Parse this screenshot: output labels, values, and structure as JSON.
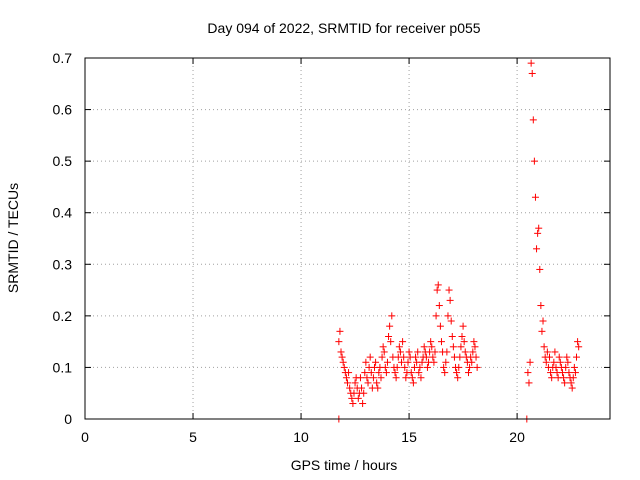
{
  "chart_data": {
    "type": "scatter",
    "title": "Day 094 of 2022, SRMTID for receiver p055",
    "xlabel": "GPS time / hours",
    "ylabel": "SRMTID / TECUs",
    "xlim": [
      0,
      24.3
    ],
    "ylim": [
      0,
      0.7
    ],
    "x_ticks": [
      0,
      5,
      10,
      15,
      20
    ],
    "x_tick_labels": [
      "0",
      "5",
      "10",
      "15",
      "20"
    ],
    "y_ticks": [
      0,
      0.1,
      0.2,
      0.3,
      0.4,
      0.5,
      0.6,
      0.7
    ],
    "y_tick_labels": [
      "0",
      "0.1",
      "0.2",
      "0.3",
      "0.4",
      "0.5",
      "0.6",
      "0.7"
    ],
    "grid": true,
    "marker": "+",
    "series_color": "#ff0000",
    "series": [
      {
        "name": "SRMTID",
        "x": [
          11.75,
          11.8,
          11.85,
          11.9,
          11.95,
          12.0,
          12.05,
          12.1,
          12.15,
          12.2,
          12.25,
          12.3,
          12.35,
          12.4,
          12.45,
          12.5,
          12.55,
          12.6,
          12.65,
          12.7,
          12.75,
          12.8,
          12.85,
          12.9,
          12.95,
          13.0,
          13.05,
          13.1,
          13.15,
          13.2,
          13.25,
          13.3,
          13.35,
          13.4,
          13.45,
          13.5,
          13.55,
          13.6,
          13.65,
          13.7,
          13.75,
          13.8,
          13.85,
          13.9,
          13.95,
          14.0,
          14.05,
          14.1,
          14.15,
          14.2,
          14.25,
          14.3,
          14.35,
          14.4,
          14.45,
          14.5,
          14.55,
          14.6,
          14.65,
          14.7,
          14.75,
          14.8,
          14.85,
          14.9,
          14.95,
          15.0,
          15.05,
          15.1,
          15.15,
          15.2,
          15.25,
          15.3,
          15.35,
          15.4,
          15.45,
          15.5,
          15.55,
          15.6,
          15.65,
          15.7,
          15.75,
          15.8,
          15.85,
          15.9,
          15.95,
          16.0,
          16.05,
          16.1,
          16.15,
          16.2,
          16.25,
          16.3,
          16.35,
          16.4,
          16.45,
          16.5,
          16.55,
          16.6,
          16.65,
          16.7,
          16.75,
          16.8,
          16.85,
          16.9,
          16.95,
          17.0,
          17.05,
          17.1,
          17.15,
          17.2,
          17.25,
          17.3,
          17.35,
          17.4,
          17.45,
          17.5,
          17.55,
          17.6,
          17.65,
          17.7,
          17.75,
          17.8,
          17.85,
          17.9,
          17.95,
          18.0,
          18.05,
          18.1,
          18.15,
          20.5,
          20.55,
          20.6,
          20.65,
          20.7,
          20.75,
          20.8,
          20.85,
          20.9,
          20.95,
          21.0,
          21.05,
          21.1,
          21.15,
          21.2,
          21.25,
          21.3,
          21.35,
          21.4,
          21.45,
          21.5,
          21.55,
          21.6,
          21.65,
          21.7,
          21.75,
          21.8,
          21.85,
          21.9,
          21.95,
          22.0,
          22.05,
          22.1,
          22.15,
          22.2,
          22.25,
          22.3,
          22.35,
          22.4,
          22.45,
          22.5,
          22.55,
          22.6,
          22.65,
          22.7,
          22.75,
          22.8,
          22.85,
          11.75,
          20.45
        ],
        "y": [
          0.15,
          0.17,
          0.13,
          0.12,
          0.11,
          0.1,
          0.09,
          0.08,
          0.07,
          0.09,
          0.06,
          0.05,
          0.04,
          0.03,
          0.05,
          0.07,
          0.08,
          0.06,
          0.04,
          0.05,
          0.08,
          0.06,
          0.03,
          0.05,
          0.09,
          0.11,
          0.08,
          0.07,
          0.1,
          0.12,
          0.09,
          0.06,
          0.08,
          0.1,
          0.11,
          0.07,
          0.06,
          0.09,
          0.1,
          0.08,
          0.12,
          0.14,
          0.13,
          0.1,
          0.09,
          0.11,
          0.16,
          0.18,
          0.15,
          0.2,
          0.12,
          0.1,
          0.09,
          0.08,
          0.1,
          0.12,
          0.14,
          0.13,
          0.11,
          0.15,
          0.12,
          0.1,
          0.08,
          0.09,
          0.11,
          0.13,
          0.12,
          0.09,
          0.08,
          0.07,
          0.1,
          0.12,
          0.11,
          0.13,
          0.09,
          0.1,
          0.08,
          0.11,
          0.12,
          0.14,
          0.13,
          0.12,
          0.1,
          0.11,
          0.13,
          0.15,
          0.14,
          0.12,
          0.11,
          0.13,
          0.2,
          0.25,
          0.26,
          0.22,
          0.18,
          0.15,
          0.13,
          0.1,
          0.09,
          0.11,
          0.13,
          0.2,
          0.25,
          0.23,
          0.19,
          0.16,
          0.14,
          0.12,
          0.1,
          0.09,
          0.08,
          0.1,
          0.12,
          0.14,
          0.16,
          0.18,
          0.15,
          0.13,
          0.12,
          0.11,
          0.09,
          0.1,
          0.12,
          0.11,
          0.13,
          0.15,
          0.14,
          0.12,
          0.1,
          0.09,
          0.07,
          0.11,
          0.69,
          0.67,
          0.58,
          0.5,
          0.43,
          0.33,
          0.36,
          0.37,
          0.29,
          0.22,
          0.17,
          0.19,
          0.14,
          0.12,
          0.11,
          0.13,
          0.1,
          0.12,
          0.09,
          0.08,
          0.1,
          0.11,
          0.13,
          0.1,
          0.09,
          0.08,
          0.12,
          0.11,
          0.1,
          0.09,
          0.08,
          0.07,
          0.1,
          0.12,
          0.11,
          0.09,
          0.08,
          0.07,
          0.06,
          0.08,
          0.1,
          0.09,
          0.12,
          0.15,
          0.14,
          0.0,
          0.0
        ]
      }
    ]
  }
}
